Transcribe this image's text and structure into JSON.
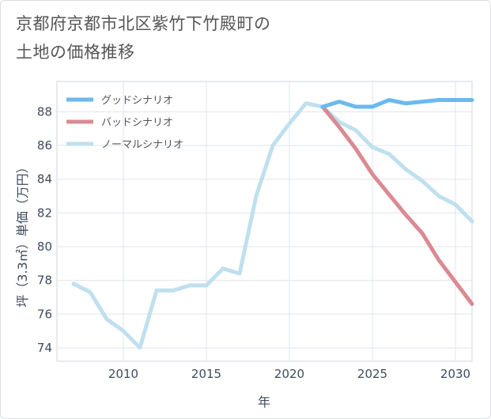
{
  "chart_data": {
    "type": "line",
    "title_lines": [
      "京都府京都市北区紫竹下竹殿町の",
      "土地の価格推移"
    ],
    "xlabel": "年",
    "ylabel": "坪（3.3㎡）単価（万円）",
    "xlim": [
      2006,
      2031
    ],
    "ylim": [
      73.2,
      89.8
    ],
    "xticks": [
      2010,
      2015,
      2020,
      2025,
      2030
    ],
    "yticks": [
      74,
      76,
      78,
      80,
      82,
      84,
      86,
      88
    ],
    "grid": true,
    "legend_position": "top-left",
    "series": [
      {
        "name": "グッドシナリオ",
        "color": "#6ab9ef",
        "x": [
          2022,
          2023,
          2024,
          2025,
          2026,
          2027,
          2028,
          2029,
          2030,
          2031
        ],
        "values": [
          88.3,
          88.6,
          88.3,
          88.3,
          88.7,
          88.5,
          88.6,
          88.7,
          88.7,
          88.7
        ]
      },
      {
        "name": "バッドシナリオ",
        "color": "#db8a92",
        "x": [
          2022,
          2023,
          2024,
          2025,
          2026,
          2027,
          2028,
          2029,
          2030,
          2031
        ],
        "values": [
          88.3,
          87.1,
          85.8,
          84.3,
          83.1,
          81.9,
          80.8,
          79.2,
          77.9,
          76.6
        ]
      },
      {
        "name": "ノーマルシナリオ",
        "color": "#bfe0ee",
        "x": [
          2007,
          2008,
          2009,
          2010,
          2011,
          2012,
          2013,
          2014,
          2015,
          2016,
          2017,
          2018,
          2019,
          2020,
          2021,
          2022,
          2023,
          2024,
          2025,
          2026,
          2027,
          2028,
          2029,
          2030,
          2031
        ],
        "values": [
          77.8,
          77.3,
          75.7,
          75.0,
          74.0,
          77.4,
          77.4,
          77.7,
          77.7,
          78.7,
          78.4,
          83.0,
          86.0,
          87.3,
          88.5,
          88.3,
          87.4,
          86.9,
          85.9,
          85.5,
          84.6,
          83.9,
          83.0,
          82.5,
          81.5
        ]
      }
    ]
  }
}
